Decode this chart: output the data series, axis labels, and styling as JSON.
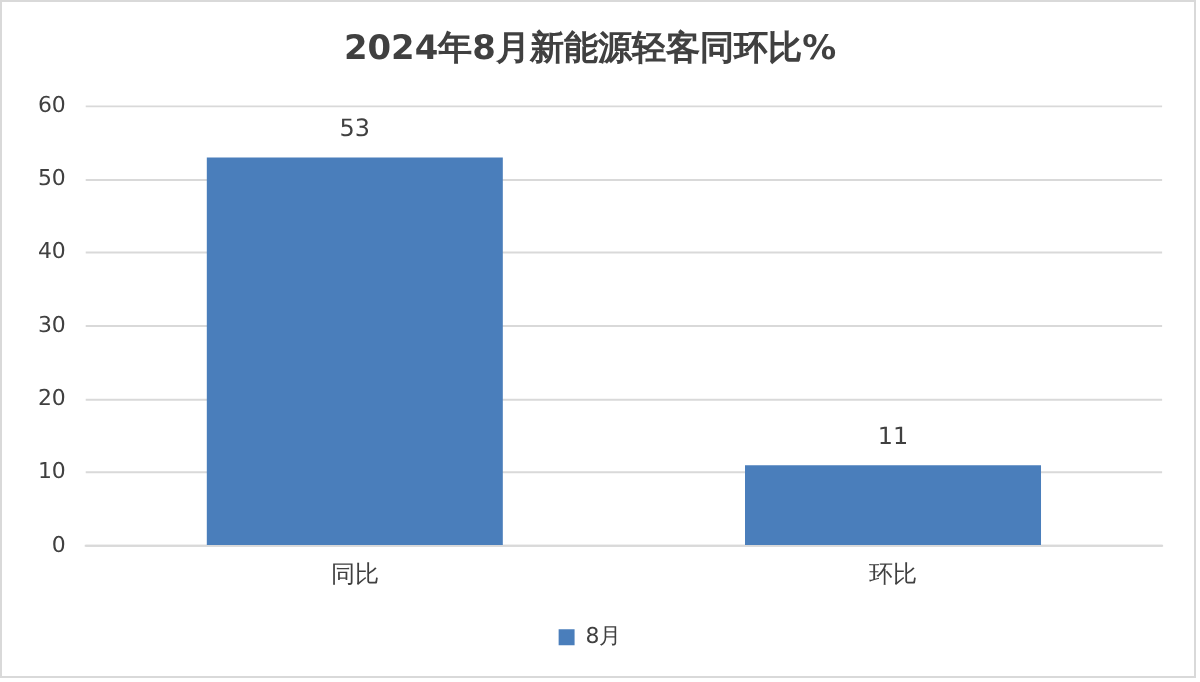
{
  "chart_data": {
    "type": "bar",
    "title": "2024年8月新能源轻客同环比%",
    "categories": [
      "同比",
      "环比"
    ],
    "series": [
      {
        "name": "8月",
        "color": "#4a7ebb",
        "values": [
          53,
          11
        ]
      }
    ],
    "ylim": [
      0,
      60
    ],
    "yticks": [
      0,
      10,
      20,
      30,
      40,
      50,
      60
    ],
    "grid": "y",
    "legend": "bottom",
    "data_labels": true
  }
}
